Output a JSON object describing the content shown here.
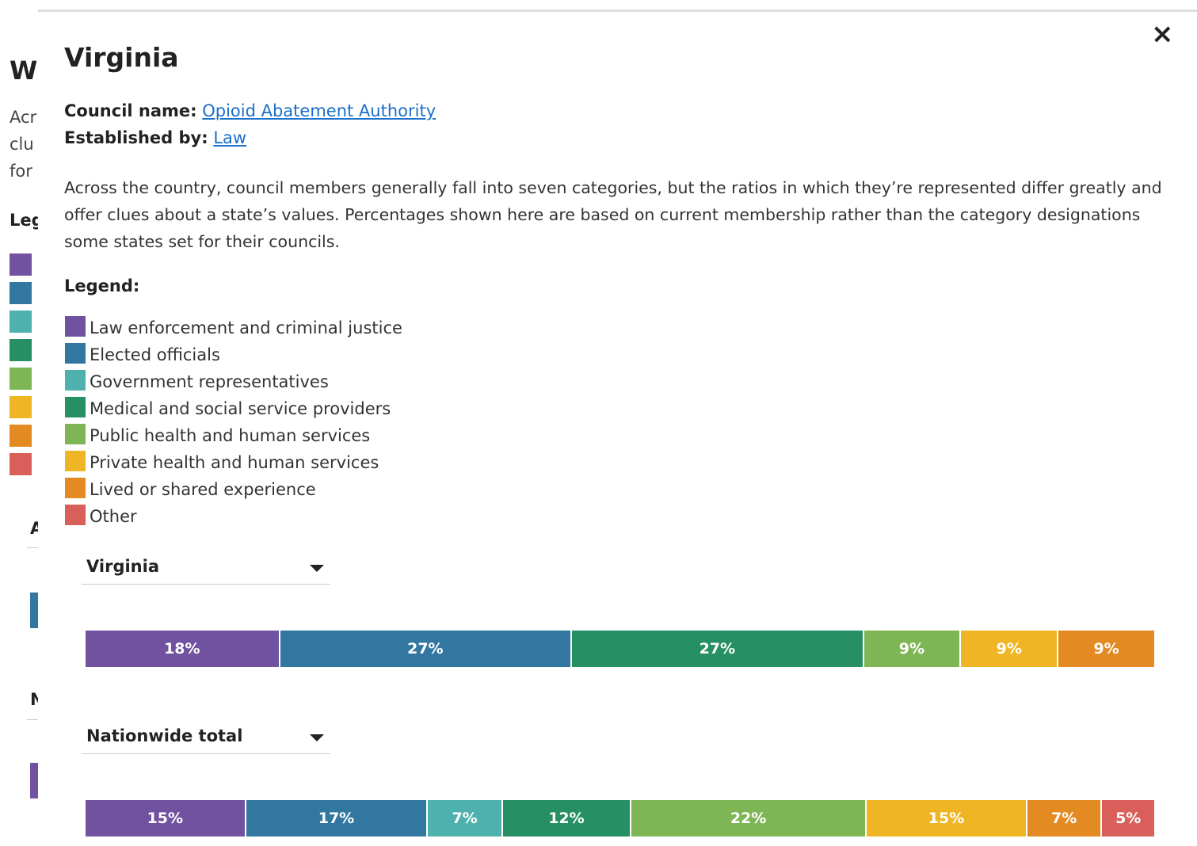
{
  "background": {
    "heading": "Wh",
    "lines": [
      "Acr",
      "clu",
      "for"
    ],
    "legend_heading": "Leg",
    "section_a": "A",
    "section_n": "N"
  },
  "modal": {
    "close": "×",
    "title": "Virginia",
    "council_label": "Council name:",
    "council_name": "Opioid Abatement Authority",
    "established_label": "Established by:",
    "established_by": "Law",
    "description": "Across the country, council members generally fall into seven categories, but the ratios in which they’re represented differ greatly and offer clues about a state’s values. Percentages shown here are based on current membership rather than the category designations some states set for their councils.",
    "legend_title": "Legend:",
    "legend": [
      {
        "label": "Law enforcement and criminal justice",
        "color": "#7152a0"
      },
      {
        "label": "Elected officials",
        "color": "#31779f"
      },
      {
        "label": "Government representatives",
        "color": "#4eb1ad"
      },
      {
        "label": "Medical and social service providers",
        "color": "#268f63"
      },
      {
        "label": "Public health and human services",
        "color": "#7fb655"
      },
      {
        "label": "Private health and human services",
        "color": "#f0b524"
      },
      {
        "label": "Lived or shared experience",
        "color": "#e38a22"
      },
      {
        "label": "Other",
        "color": "#d9605a"
      }
    ],
    "bars": [
      {
        "dropdown": "Virginia",
        "segments": [
          {
            "color": "#7152a0",
            "value": 18,
            "value_label": "18%"
          },
          {
            "color": "#31779f",
            "value": 27,
            "value_label": "27%"
          },
          {
            "color": "#268f63",
            "value": 27,
            "value_label": "27%"
          },
          {
            "color": "#7fb655",
            "value": 9,
            "value_label": "9%"
          },
          {
            "color": "#f0b524",
            "value": 9,
            "value_label": "9%"
          },
          {
            "color": "#e38a22",
            "value": 9,
            "value_label": "9%"
          }
        ]
      },
      {
        "dropdown": "Nationwide total",
        "segments": [
          {
            "color": "#7152a0",
            "value": 15,
            "value_label": "15%"
          },
          {
            "color": "#31779f",
            "value": 17,
            "value_label": "17%"
          },
          {
            "color": "#4eb1ad",
            "value": 7,
            "value_label": "7%"
          },
          {
            "color": "#268f63",
            "value": 12,
            "value_label": "12%"
          },
          {
            "color": "#7fb655",
            "value": 22,
            "value_label": "22%"
          },
          {
            "color": "#f0b524",
            "value": 15,
            "value_label": "15%"
          },
          {
            "color": "#e38a22",
            "value": 7,
            "value_label": "7%"
          },
          {
            "color": "#d9605a",
            "value": 5,
            "value_label": "5%"
          }
        ]
      }
    ]
  }
}
